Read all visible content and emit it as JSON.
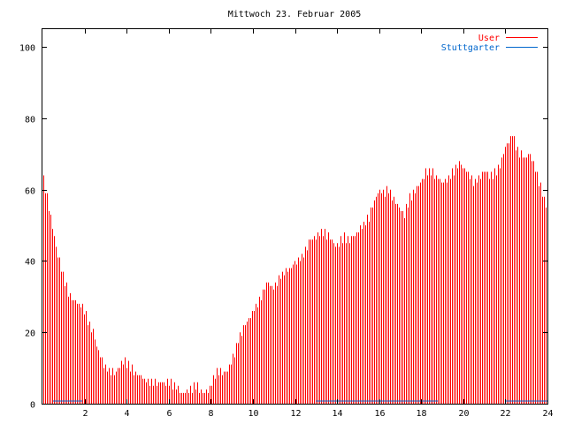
{
  "chart_data": {
    "type": "bar",
    "title": "Mittwoch 23. Februar 2005",
    "xlabel": "",
    "ylabel": "",
    "xlim": [
      0,
      24
    ],
    "ylim": [
      0,
      105
    ],
    "grid": false,
    "legend_placement": "top-right",
    "x_ticks": [
      "2",
      "4",
      "6",
      "8",
      "10",
      "12",
      "14",
      "16",
      "18",
      "20",
      "22",
      "24"
    ],
    "y_ticks": [
      "0",
      "20",
      "40",
      "60",
      "80",
      "100"
    ],
    "colors": {
      "User": "#ff0000",
      "Stuttgarter": "#0066cc",
      "frame": "#000000"
    },
    "series": [
      {
        "name": "User",
        "anchors": [
          [
            0.0,
            64
          ],
          [
            0.08,
            62
          ],
          [
            0.2,
            58
          ],
          [
            0.33,
            54
          ],
          [
            0.5,
            48
          ],
          [
            0.67,
            43
          ],
          [
            0.8,
            40
          ],
          [
            1.0,
            35
          ],
          [
            1.17,
            32
          ],
          [
            1.33,
            30
          ],
          [
            1.5,
            29
          ],
          [
            1.7,
            28
          ],
          [
            1.9,
            27
          ],
          [
            2.1,
            24
          ],
          [
            2.4,
            20
          ],
          [
            2.6,
            15
          ],
          [
            2.8,
            12
          ],
          [
            3.0,
            10
          ],
          [
            3.2,
            9
          ],
          [
            3.5,
            9
          ],
          [
            3.7,
            11
          ],
          [
            3.9,
            12
          ],
          [
            4.2,
            10
          ],
          [
            4.5,
            8
          ],
          [
            4.8,
            7
          ],
          [
            5.0,
            6
          ],
          [
            5.5,
            6
          ],
          [
            6.0,
            6
          ],
          [
            6.4,
            5
          ],
          [
            6.5,
            3
          ],
          [
            7.0,
            4
          ],
          [
            7.3,
            5
          ],
          [
            7.6,
            3
          ],
          [
            7.9,
            4
          ],
          [
            8.1,
            7
          ],
          [
            8.3,
            9
          ],
          [
            8.6,
            9
          ],
          [
            8.8,
            9
          ],
          [
            9.0,
            12
          ],
          [
            9.3,
            18
          ],
          [
            9.6,
            22
          ],
          [
            9.9,
            25
          ],
          [
            10.2,
            28
          ],
          [
            10.5,
            32
          ],
          [
            10.7,
            34
          ],
          [
            11.0,
            32
          ],
          [
            11.2,
            35
          ],
          [
            11.5,
            37
          ],
          [
            11.8,
            38
          ],
          [
            12.0,
            40
          ],
          [
            12.3,
            41
          ],
          [
            12.5,
            43
          ],
          [
            12.7,
            46
          ],
          [
            13.0,
            47
          ],
          [
            13.3,
            48
          ],
          [
            13.6,
            47
          ],
          [
            13.9,
            44
          ],
          [
            14.1,
            45
          ],
          [
            14.3,
            47
          ],
          [
            14.5,
            46
          ],
          [
            14.8,
            47
          ],
          [
            15.0,
            48
          ],
          [
            15.2,
            50
          ],
          [
            15.5,
            52
          ],
          [
            15.7,
            56
          ],
          [
            16.0,
            60
          ],
          [
            16.2,
            59
          ],
          [
            16.4,
            60
          ],
          [
            16.6,
            58
          ],
          [
            16.9,
            55
          ],
          [
            17.2,
            53
          ],
          [
            17.4,
            57
          ],
          [
            17.7,
            60
          ],
          [
            18.0,
            62
          ],
          [
            18.2,
            65
          ],
          [
            18.5,
            65
          ],
          [
            18.8,
            63
          ],
          [
            19.0,
            62
          ],
          [
            19.3,
            63
          ],
          [
            19.6,
            66
          ],
          [
            19.8,
            68
          ],
          [
            20.0,
            66
          ],
          [
            20.3,
            64
          ],
          [
            20.5,
            62
          ],
          [
            20.8,
            64
          ],
          [
            21.0,
            65
          ],
          [
            21.3,
            64
          ],
          [
            21.6,
            65
          ],
          [
            21.8,
            68
          ],
          [
            22.0,
            72
          ],
          [
            22.2,
            74
          ],
          [
            22.3,
            76
          ],
          [
            22.5,
            72
          ],
          [
            22.7,
            70
          ],
          [
            22.9,
            69
          ],
          [
            23.1,
            70
          ],
          [
            23.3,
            68
          ],
          [
            23.5,
            64
          ],
          [
            23.7,
            60
          ],
          [
            23.85,
            57
          ],
          [
            24.0,
            54
          ]
        ]
      },
      {
        "name": "Stuttgarter",
        "segments": [
          [
            0.5,
            1.9
          ],
          [
            13.0,
            18.8
          ],
          [
            22.0,
            24.0
          ]
        ],
        "value": 0.5
      }
    ]
  }
}
